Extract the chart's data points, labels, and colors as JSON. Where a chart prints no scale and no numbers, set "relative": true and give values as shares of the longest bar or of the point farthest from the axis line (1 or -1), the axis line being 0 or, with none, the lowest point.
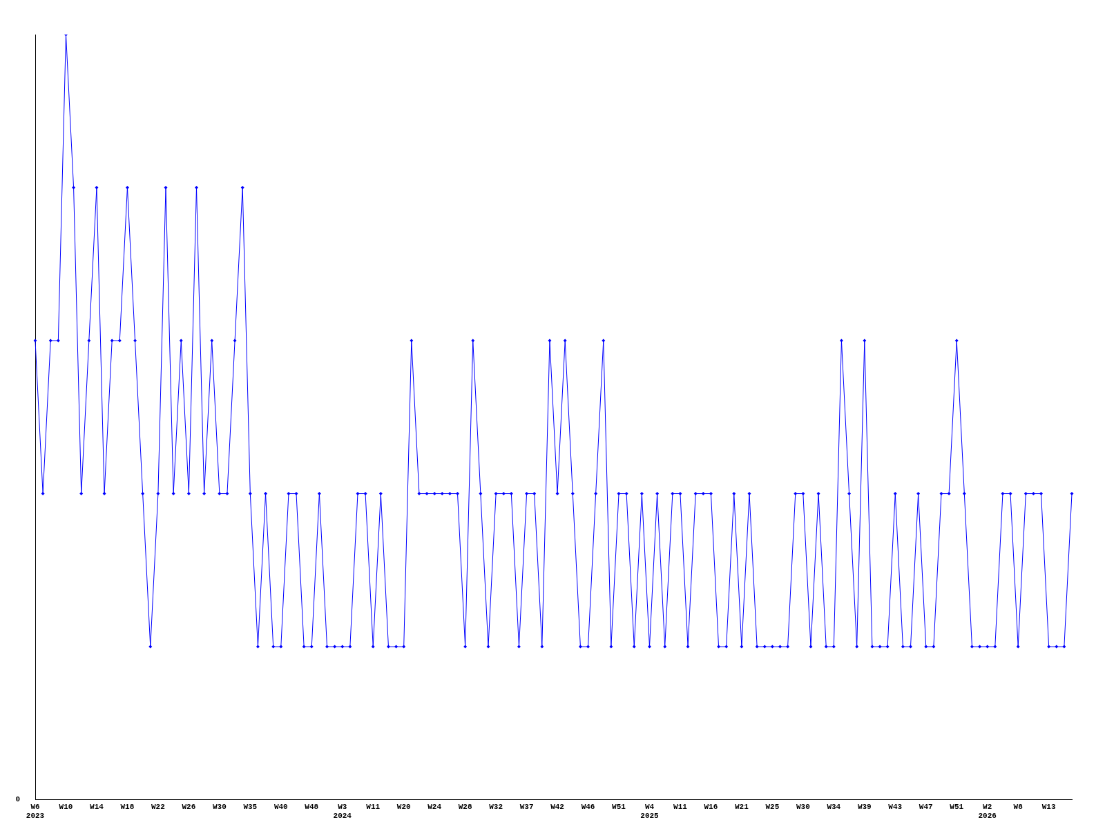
{
  "chart_data": {
    "type": "line",
    "relative": true,
    "marker": "diamond",
    "line_style": "solid",
    "grid": false,
    "legend": false,
    "annotations": [
      "0"
    ],
    "categories": [
      "W6\n2023",
      null,
      null,
      null,
      "W10",
      null,
      null,
      null,
      "W14",
      null,
      null,
      null,
      "W18",
      null,
      null,
      null,
      "W22",
      null,
      null,
      null,
      "W26",
      null,
      null,
      null,
      "W30",
      null,
      null,
      null,
      "W35",
      null,
      null,
      null,
      "W40",
      null,
      null,
      null,
      "W48",
      null,
      null,
      null,
      "W3\n2024",
      null,
      null,
      null,
      "W11",
      null,
      null,
      null,
      "W20",
      null,
      null,
      null,
      "W24",
      null,
      null,
      null,
      "W28",
      null,
      null,
      null,
      "W32",
      null,
      null,
      null,
      "W37",
      null,
      null,
      null,
      "W42",
      null,
      null,
      null,
      "W46",
      null,
      null,
      null,
      "W51",
      null,
      null,
      null,
      "W4\n2025",
      null,
      null,
      null,
      "W11",
      null,
      null,
      null,
      "W16",
      null,
      null,
      null,
      "W21",
      null,
      null,
      null,
      "W25",
      null,
      null,
      null,
      "W30",
      null,
      null,
      null,
      "W34",
      null,
      null,
      null,
      "W39",
      null,
      null,
      null,
      "W43",
      null,
      null,
      null,
      "W47",
      null,
      null,
      null,
      "W51",
      null,
      null,
      null,
      "W2\n2026",
      null,
      null,
      null,
      "W8",
      null,
      null,
      null,
      "W13",
      null,
      null,
      null
    ],
    "series": [
      {
        "color": "#0000ff",
        "values": [
          0.6,
          0.4,
          0.6,
          0.6,
          1,
          0.8,
          0.4,
          0.6,
          0.8,
          0.4,
          0.6,
          0.6,
          0.8,
          0.6,
          0.4,
          0.2,
          0.4,
          0.8,
          0.4,
          0.6,
          0.4,
          0.8,
          0.4,
          0.6,
          0.4,
          0.4,
          0.6,
          0.8,
          0.4,
          0.2,
          0.4,
          0.2,
          0.2,
          0.4,
          0.4,
          0.2,
          0.2,
          0.4,
          0.2,
          0.2,
          0.2,
          0.2,
          0.4,
          0.4,
          0.2,
          0.4,
          0.2,
          0.2,
          0.2,
          0.6,
          0.4,
          0.4,
          0.4,
          0.4,
          0.4,
          0.4,
          0.2,
          0.6,
          0.4,
          0.2,
          0.4,
          0.4,
          0.4,
          0.2,
          0.4,
          0.4,
          0.2,
          0.6,
          0.4,
          0.6,
          0.4,
          0.2,
          0.2,
          0.4,
          0.6,
          0.2,
          0.4,
          0.4,
          0.2,
          0.4,
          0.2,
          0.4,
          0.2,
          0.4,
          0.4,
          0.2,
          0.4,
          0.4,
          0.4,
          0.2,
          0.2,
          0.4,
          0.2,
          0.4,
          0.2,
          0.2,
          0.2,
          0.2,
          0.2,
          0.4,
          0.4,
          0.2,
          0.4,
          0.2,
          0.2,
          0.6,
          0.4,
          0.2,
          0.6,
          0.2,
          0.2,
          0.2,
          0.4,
          0.2,
          0.2,
          0.4,
          0.2,
          0.2,
          0.4,
          0.4,
          0.6,
          0.4,
          0.2,
          0.2,
          0.2,
          0.2,
          0.4,
          0.4,
          0.2,
          0.4,
          0.4,
          0.4,
          0.2,
          0.2,
          0.2,
          0.4
        ]
      }
    ]
  }
}
